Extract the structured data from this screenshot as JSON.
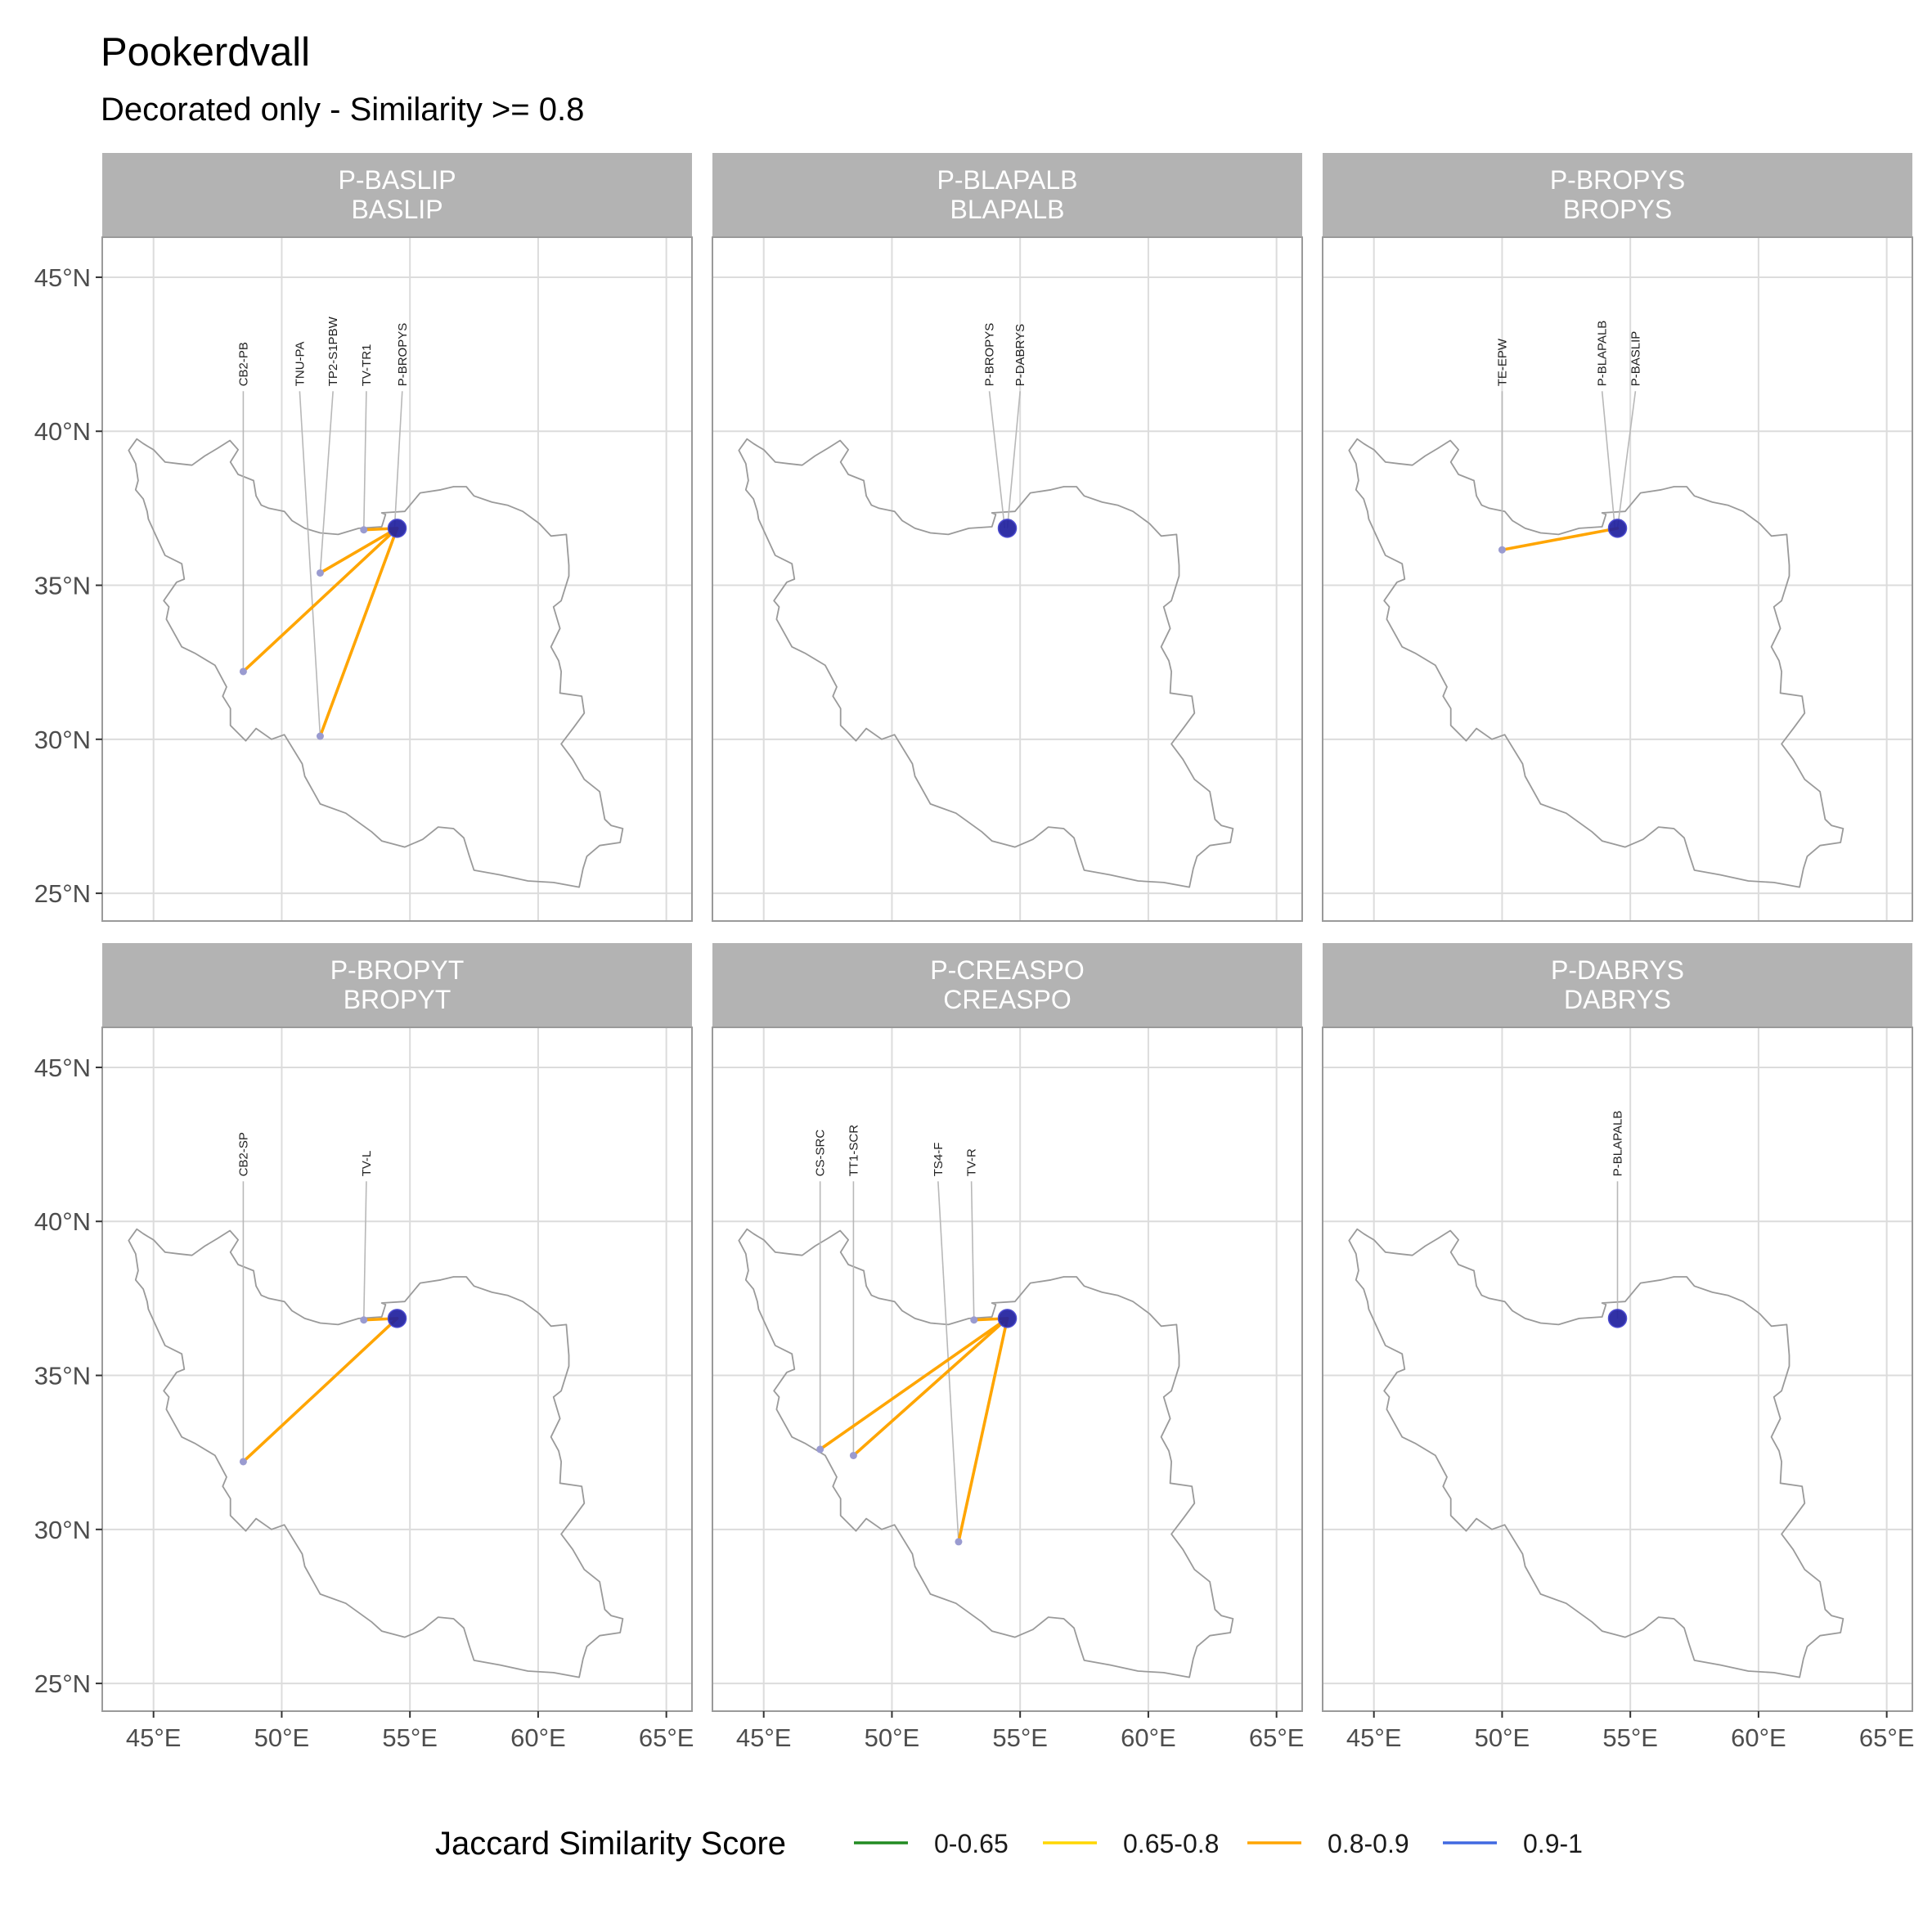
{
  "title": "Pookerdvall",
  "subtitle": "Decorated only - Similarity >= 0.8",
  "chart_data": {
    "type": "map",
    "x_ticks": [
      "45°E",
      "50°E",
      "55°E",
      "60°E",
      "65°E"
    ],
    "x_tick_values": [
      45,
      50,
      55,
      60,
      65
    ],
    "y_ticks": [
      "25°N",
      "30°N",
      "35°N",
      "40°N",
      "45°N"
    ],
    "y_tick_values": [
      25,
      30,
      35,
      40,
      45
    ],
    "xlim": [
      43,
      66
    ],
    "ylim": [
      24.1,
      46.3
    ],
    "label_lat": 41.3,
    "colors": {
      "strip": "#b3b3b3",
      "grid": "#dcdcdc",
      "border": "#9a9a9a",
      "country": "#9a9a9a",
      "leader": "#b8b8b8",
      "focal_point": "#1f1f9e",
      "site_point": "#9a9bd0"
    },
    "focal": {
      "lon": 54.5,
      "lat": 36.85
    },
    "panels": [
      {
        "strip_line1": "P-BASLIP",
        "strip_line2": "BASLIP",
        "links": [
          {
            "label": "CB2-PB",
            "lon": 48.5,
            "lat": 32.2,
            "label_lon": 48.5,
            "band": "0.8-0.9"
          },
          {
            "label": "TNU-PA",
            "lon": 51.5,
            "lat": 30.1,
            "label_lon": 50.7,
            "band": "0.8-0.9"
          },
          {
            "label": "TP2-S1PBW",
            "lon": 51.5,
            "lat": 35.4,
            "label_lon": 52.0,
            "band": "0.8-0.9"
          },
          {
            "label": "TV-TR1",
            "lon": 53.2,
            "lat": 36.8,
            "label_lon": 53.3,
            "band": "0.8-0.9"
          },
          {
            "label": "P-BROPYS",
            "lon": 54.4,
            "lat": 36.85,
            "label_lon": 54.7,
            "band": null
          }
        ]
      },
      {
        "strip_line1": "P-BLAPALB",
        "strip_line2": "BLAPALB",
        "links": [
          {
            "label": "P-BROPYS",
            "lon": 54.4,
            "lat": 36.85,
            "label_lon": 53.8,
            "band": null
          },
          {
            "label": "P-DABRYS",
            "lon": 54.5,
            "lat": 36.85,
            "label_lon": 55.0,
            "band": null
          }
        ]
      },
      {
        "strip_line1": "P-BROPYS",
        "strip_line2": "BROPYS",
        "links": [
          {
            "label": "TE-EPW",
            "lon": 50.0,
            "lat": 36.15,
            "label_lon": 50.0,
            "band": "0.8-0.9"
          },
          {
            "label": "P-BLAPALB",
            "lon": 54.4,
            "lat": 36.85,
            "label_lon": 53.9,
            "band": null
          },
          {
            "label": "P-BASLIP",
            "lon": 54.5,
            "lat": 36.85,
            "label_lon": 55.2,
            "band": null
          }
        ]
      },
      {
        "strip_line1": "P-BROPYT",
        "strip_line2": "BROPYT",
        "links": [
          {
            "label": "CB2-SP",
            "lon": 48.5,
            "lat": 32.2,
            "label_lon": 48.5,
            "band": "0.8-0.9"
          },
          {
            "label": "TV-L",
            "lon": 53.2,
            "lat": 36.8,
            "label_lon": 53.3,
            "band": "0.8-0.9"
          }
        ]
      },
      {
        "strip_line1": "P-CREASPO",
        "strip_line2": "CREASPO",
        "links": [
          {
            "label": "CS-SRC",
            "lon": 47.2,
            "lat": 32.6,
            "label_lon": 47.2,
            "band": "0.8-0.9"
          },
          {
            "label": "TT1-SCR",
            "lon": 48.5,
            "lat": 32.4,
            "label_lon": 48.5,
            "band": "0.8-0.9"
          },
          {
            "label": "TS4-F",
            "lon": 52.6,
            "lat": 29.6,
            "label_lon": 51.8,
            "band": "0.8-0.9"
          },
          {
            "label": "TV-R",
            "lon": 53.2,
            "lat": 36.8,
            "label_lon": 53.1,
            "band": "0.8-0.9"
          }
        ]
      },
      {
        "strip_line1": "P-DABRYS",
        "strip_line2": "DABRYS",
        "links": [
          {
            "label": "P-BLAPALB",
            "lon": 54.5,
            "lat": 36.85,
            "label_lon": 54.5,
            "band": null
          }
        ]
      }
    ],
    "legend": {
      "title": "Jaccard Similarity Score",
      "entries": [
        {
          "label": "0-0.65",
          "color": "#228B22"
        },
        {
          "label": "0.65-0.8",
          "color": "#FFD700"
        },
        {
          "label": "0.8-0.9",
          "color": "#FFA500"
        },
        {
          "label": "0.9-1",
          "color": "#4169E1"
        }
      ]
    },
    "iran_outline": [
      [
        44.03,
        39.38
      ],
      [
        44.35,
        39.75
      ],
      [
        44.6,
        39.6
      ],
      [
        44.8,
        39.5
      ],
      [
        45.0,
        39.4
      ],
      [
        45.45,
        39.0
      ],
      [
        45.95,
        38.95
      ],
      [
        46.5,
        38.9
      ],
      [
        47.0,
        39.2
      ],
      [
        47.5,
        39.45
      ],
      [
        47.98,
        39.7
      ],
      [
        48.3,
        39.4
      ],
      [
        48.0,
        39.0
      ],
      [
        48.3,
        38.6
      ],
      [
        48.9,
        38.4
      ],
      [
        49.0,
        37.9
      ],
      [
        49.2,
        37.6
      ],
      [
        49.5,
        37.5
      ],
      [
        50.1,
        37.4
      ],
      [
        50.4,
        37.1
      ],
      [
        50.9,
        36.85
      ],
      [
        51.5,
        36.7
      ],
      [
        52.2,
        36.65
      ],
      [
        53.0,
        36.85
      ],
      [
        53.9,
        36.9
      ],
      [
        54.05,
        37.3
      ],
      [
        53.9,
        37.35
      ],
      [
        54.8,
        37.4
      ],
      [
        55.4,
        38.0
      ],
      [
        56.2,
        38.1
      ],
      [
        56.7,
        38.2
      ],
      [
        57.2,
        38.2
      ],
      [
        57.5,
        37.9
      ],
      [
        58.2,
        37.7
      ],
      [
        58.8,
        37.6
      ],
      [
        59.4,
        37.4
      ],
      [
        60.05,
        37.0
      ],
      [
        60.5,
        36.6
      ],
      [
        61.1,
        36.65
      ],
      [
        61.2,
        35.65
      ],
      [
        61.2,
        35.3
      ],
      [
        61.05,
        34.9
      ],
      [
        60.9,
        34.5
      ],
      [
        60.6,
        34.3
      ],
      [
        60.85,
        33.6
      ],
      [
        60.5,
        33.0
      ],
      [
        60.8,
        32.55
      ],
      [
        60.9,
        32.2
      ],
      [
        60.85,
        31.5
      ],
      [
        61.7,
        31.4
      ],
      [
        61.8,
        30.85
      ],
      [
        61.4,
        30.4
      ],
      [
        60.9,
        29.85
      ],
      [
        61.35,
        29.35
      ],
      [
        61.8,
        28.7
      ],
      [
        62.4,
        28.3
      ],
      [
        62.6,
        27.4
      ],
      [
        62.85,
        27.2
      ],
      [
        63.3,
        27.1
      ],
      [
        63.2,
        26.65
      ],
      [
        62.4,
        26.55
      ],
      [
        61.9,
        26.2
      ],
      [
        61.75,
        25.8
      ],
      [
        61.6,
        25.2
      ],
      [
        60.6,
        25.35
      ],
      [
        59.6,
        25.4
      ],
      [
        58.5,
        25.6
      ],
      [
        57.5,
        25.75
      ],
      [
        57.3,
        26.25
      ],
      [
        57.1,
        26.8
      ],
      [
        56.7,
        27.1
      ],
      [
        56.1,
        27.15
      ],
      [
        55.5,
        26.75
      ],
      [
        54.8,
        26.5
      ],
      [
        53.9,
        26.7
      ],
      [
        53.5,
        27.0
      ],
      [
        52.5,
        27.6
      ],
      [
        51.5,
        27.9
      ],
      [
        50.9,
        28.8
      ],
      [
        50.8,
        29.2
      ],
      [
        50.1,
        30.15
      ],
      [
        49.6,
        30.0
      ],
      [
        49.0,
        30.35
      ],
      [
        48.6,
        29.95
      ],
      [
        48.0,
        30.45
      ],
      [
        48.0,
        31.0
      ],
      [
        47.7,
        31.4
      ],
      [
        47.85,
        31.7
      ],
      [
        47.4,
        32.4
      ],
      [
        46.6,
        32.8
      ],
      [
        46.1,
        33.0
      ],
      [
        45.5,
        33.9
      ],
      [
        45.6,
        34.3
      ],
      [
        45.4,
        34.5
      ],
      [
        45.9,
        35.1
      ],
      [
        46.2,
        35.2
      ],
      [
        46.1,
        35.7
      ],
      [
        45.45,
        35.97
      ],
      [
        45.1,
        36.6
      ],
      [
        44.8,
        37.15
      ],
      [
        44.75,
        37.4
      ],
      [
        44.6,
        37.8
      ],
      [
        44.3,
        38.1
      ],
      [
        44.4,
        38.4
      ],
      [
        44.3,
        38.95
      ],
      [
        44.03,
        39.38
      ]
    ]
  }
}
